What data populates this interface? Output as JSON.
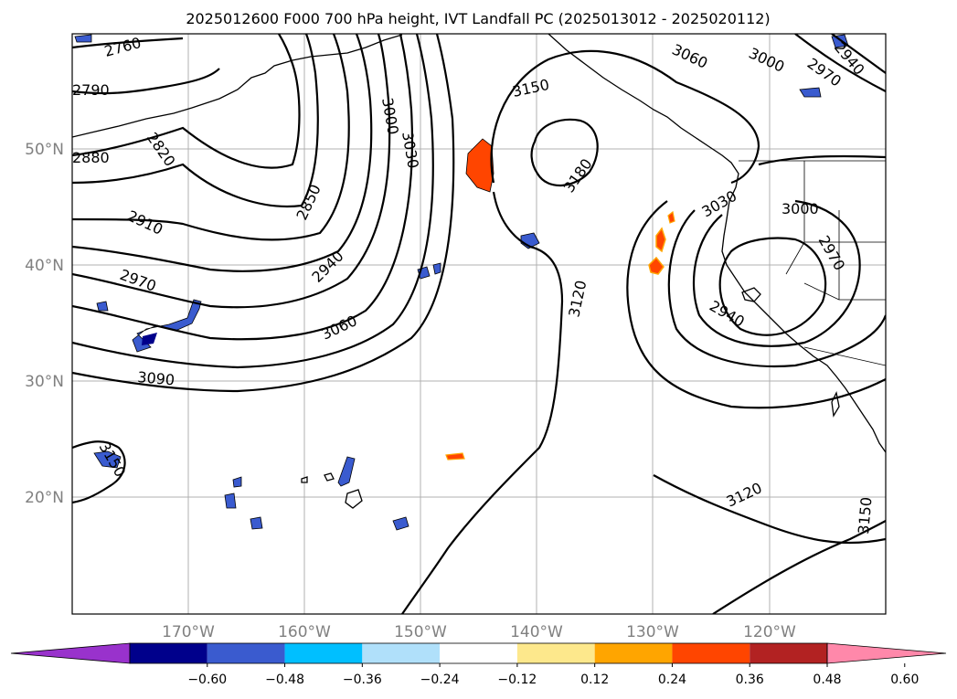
{
  "title": "2025012600 F000 700 hPa height, IVT Landfall PC (2025013012 - 2025020112)",
  "map": {
    "projection": "PlateCarree",
    "lon_range": [
      -180,
      -110
    ],
    "lat_range": [
      10,
      60
    ],
    "gridlines": true,
    "lat_labels": [
      "50°N",
      "40°N",
      "30°N",
      "20°N"
    ],
    "lon_labels": [
      "170°W",
      "160°W",
      "150°W",
      "140°W",
      "130°W",
      "120°W"
    ]
  },
  "contour_labels": [
    "2760",
    "2790",
    "2820",
    "2880",
    "2910",
    "2970",
    "3090",
    "3150",
    "2850",
    "2940",
    "3000",
    "3030",
    "3060",
    "3150",
    "3180",
    "3120",
    "3060",
    "3000",
    "2970",
    "2940",
    "3030",
    "3000",
    "2970",
    "2940",
    "3120",
    "3150"
  ],
  "colorbar": {
    "extend": "both",
    "tick_labels": [
      "−0.60",
      "−0.48",
      "−0.36",
      "−0.24",
      "−0.12",
      "0.12",
      "0.24",
      "0.36",
      "0.48",
      "0.60"
    ],
    "colors": [
      "#9932cc",
      "#00008b",
      "#3a5bcf",
      "#00bfff",
      "#b0e0fa",
      "#ffffff",
      "#fde88c",
      "#ffa500",
      "#ff4500",
      "#b22222",
      "#ff88aa"
    ]
  }
}
